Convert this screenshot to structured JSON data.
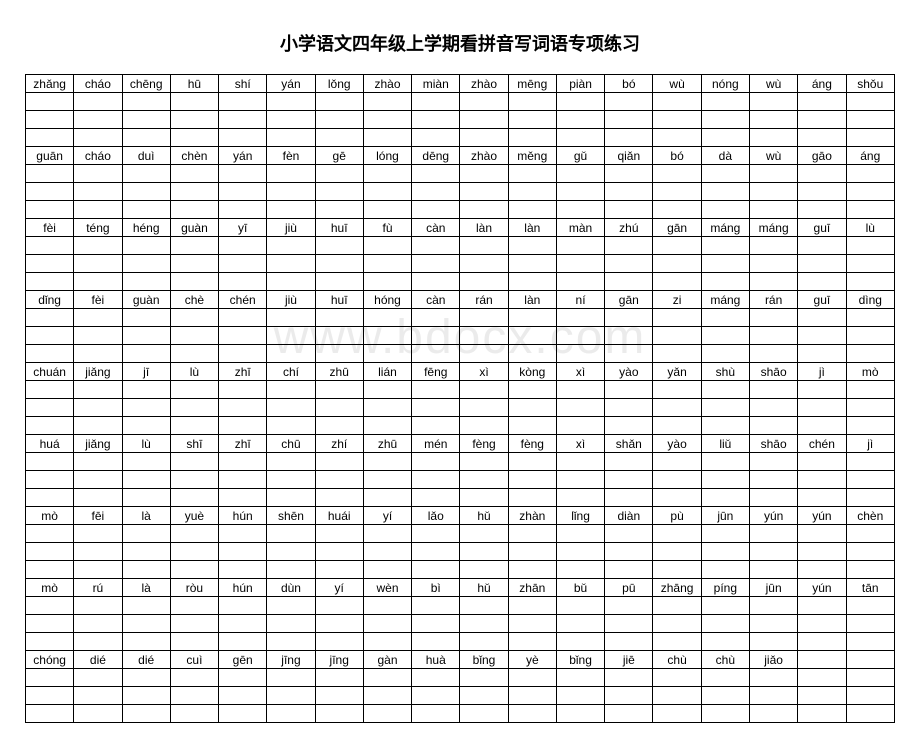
{
  "title": "小学语文四年级上学期看拼音写词语专项练习",
  "watermark": "www.bdocx.com",
  "columns": 18,
  "pinyin_rows": [
    [
      "zhǎng",
      "cháo",
      "chēng",
      "hū",
      "shí",
      "yán",
      "lǒng",
      "zhào",
      "miàn",
      "zhào",
      "mēng",
      "piàn",
      "bó",
      "wù",
      "nóng",
      "wù",
      "áng",
      "shǒu"
    ],
    [
      "guān",
      "cháo",
      "duì",
      "chèn",
      "yán",
      "fèn",
      "gē",
      "lóng",
      "dēng",
      "zhào",
      "měng",
      "gǔ",
      "qiǎn",
      "bó",
      "dà",
      "wù",
      "gāo",
      "áng"
    ],
    [
      "fèi",
      "téng",
      "héng",
      "guàn",
      "yī",
      "jiù",
      "huī",
      "fù",
      "càn",
      "làn",
      "làn",
      "màn",
      "zhú",
      "gān",
      "máng",
      "máng",
      "guī",
      "lù"
    ],
    [
      "dǐng",
      "fèi",
      "guàn",
      "chè",
      "chén",
      "jiù",
      "huī",
      "hóng",
      "càn",
      "rán",
      "làn",
      "ní",
      "gān",
      "zi",
      "máng",
      "rán",
      "guī",
      "dìng"
    ],
    [
      "chuán",
      "jiǎng",
      "jī",
      "lù",
      "zhī",
      "chí",
      "zhū",
      "lián",
      "fēng",
      "xì",
      "kòng",
      "xì",
      "yào",
      "yǎn",
      "shù",
      "shāo",
      "jì",
      "mò"
    ],
    [
      "huá",
      "jiǎng",
      "lù",
      "shī",
      "zhī",
      "chū",
      "zhí",
      "zhū",
      "mén",
      "fèng",
      "fèng",
      "xì",
      "shǎn",
      "yào",
      "liǔ",
      "shāo",
      "chén",
      "jì"
    ],
    [
      "mò",
      "fēi",
      "là",
      "yuè",
      "hún",
      "shēn",
      "huái",
      "yí",
      "lǎo",
      "hǔ",
      "zhàn",
      "lǐng",
      "diàn",
      "pù",
      "jūn",
      "yún",
      "yún",
      "chèn"
    ],
    [
      "mò",
      "rú",
      "là",
      "ròu",
      "hún",
      "dùn",
      "yí",
      "wèn",
      "bì",
      "hǔ",
      "zhān",
      "bǔ",
      "pū",
      "zhāng",
      "píng",
      "jūn",
      "yún",
      "tān"
    ],
    [
      "chóng",
      "dié",
      "dié",
      "cuì",
      "gēn",
      "jīng",
      "jīng",
      "gàn",
      "huà",
      "bǐng",
      "yè",
      "bǐng",
      "jiē",
      "chù",
      "chù",
      "jiǎo",
      "",
      ""
    ]
  ],
  "styles": {
    "title_fontsize": 18,
    "cell_fontsize": 12,
    "pinyin_row_height": 17,
    "write_row_height": 17,
    "border_color": "#000000",
    "guide_color": "#bbbbbb",
    "watermark_color": "rgba(0,0,0,0.08)",
    "watermark_fontsize": 48
  }
}
